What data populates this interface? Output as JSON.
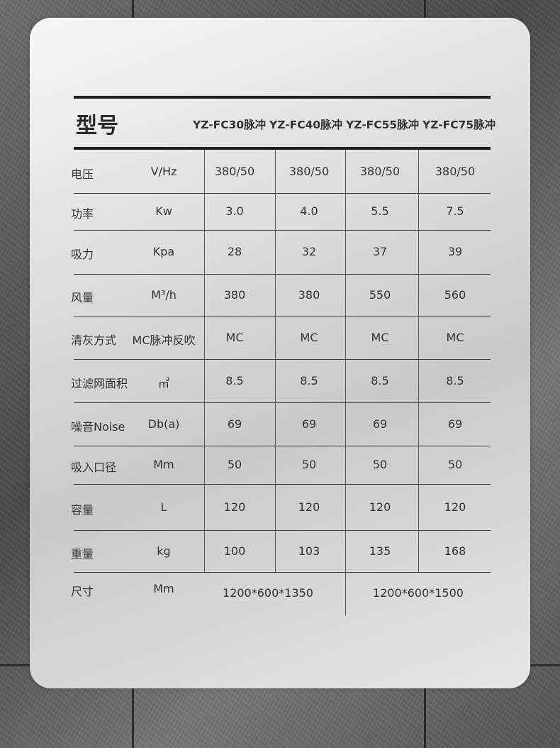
{
  "header": {
    "title": "型号",
    "models": [
      "YZ-FC30脉冲",
      "YZ-FC40脉冲",
      "YZ-FC55脉冲",
      "YZ-FC75脉冲"
    ]
  },
  "rows": [
    {
      "label": "电压",
      "unit": "V/Hz",
      "values": [
        "380/50",
        "380/50",
        "380/50",
        "380/50"
      ]
    },
    {
      "label": "功率",
      "unit": "Kw",
      "values": [
        "3.0",
        "4.0",
        "5.5",
        "7.5"
      ]
    },
    {
      "label": "吸力",
      "unit": "Kpa",
      "values": [
        "28",
        "32",
        "37",
        "39"
      ]
    },
    {
      "label": "风量",
      "unit": "M³/h",
      "values": [
        "380",
        "380",
        "550",
        "560"
      ]
    },
    {
      "label": "清灰方式",
      "unit": "MC脉冲反吹",
      "values": [
        "MC",
        "MC",
        "MC",
        "MC"
      ]
    },
    {
      "label": "过滤网面积",
      "unit": "㎡",
      "values": [
        "8.5",
        "8.5",
        "8.5",
        "8.5"
      ]
    },
    {
      "label": "噪音Noise",
      "unit": "Db(a)",
      "values": [
        "69",
        "69",
        "69",
        "69"
      ]
    },
    {
      "label": "吸入口径",
      "unit": "Mm",
      "values": [
        "50",
        "50",
        "50",
        "50"
      ]
    },
    {
      "label": "容量",
      "unit": "L",
      "values": [
        "120",
        "120",
        "120",
        "120"
      ]
    },
    {
      "label": "重量",
      "unit": "kg",
      "values": [
        "100",
        "103",
        "135",
        "168"
      ]
    }
  ],
  "size_row": {
    "label": "尺寸",
    "unit": "Mm",
    "values": [
      "1200*600*1350",
      "1200*600*1500"
    ]
  }
}
